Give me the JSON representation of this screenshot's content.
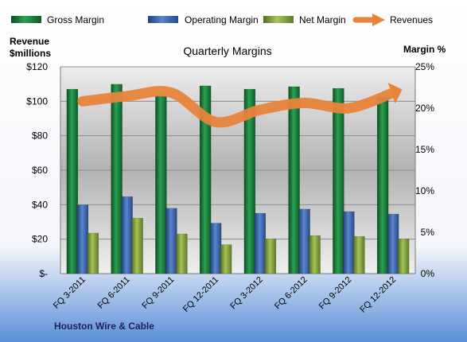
{
  "chart_data": {
    "type": "bar",
    "title": "Quarterly Margins",
    "categories": [
      "FQ 3-2011",
      "FQ 6-2011",
      "FQ 9-2011",
      "FQ 12-2011",
      "FQ 3-2012",
      "FQ 6-2012",
      "FQ 9-2012",
      "FQ 12-2012"
    ],
    "series": [
      {
        "name": "Gross Margin",
        "axis": "right",
        "values": [
          22.3,
          22.9,
          21.6,
          22.7,
          22.3,
          22.6,
          22.4,
          21.3
        ],
        "color": "#1e7a3a"
      },
      {
        "name": "Operating Margin",
        "axis": "right",
        "values": [
          8.3,
          9.3,
          7.9,
          6.1,
          7.3,
          7.8,
          7.5,
          7.2
        ],
        "color": "#3d6bb5"
      },
      {
        "name": "Net Margin",
        "axis": "right",
        "values": [
          4.9,
          6.7,
          4.8,
          3.5,
          4.2,
          4.6,
          4.5,
          4.2
        ],
        "color": "#8fb04a"
      },
      {
        "name": "Revenues",
        "type": "line",
        "axis": "left",
        "values": [
          100,
          103,
          105,
          88,
          95,
          99,
          96,
          105
        ],
        "color": "#e8843a"
      }
    ],
    "left_axis": {
      "label_lines": [
        "Revenue",
        "$millions"
      ],
      "ylim": [
        0,
        120
      ],
      "ticks": [
        0,
        20,
        40,
        60,
        80,
        100,
        120
      ],
      "tick_labels": [
        "$-",
        "$20",
        "$40",
        "$60",
        "$80",
        "$100",
        "$120"
      ]
    },
    "right_axis": {
      "label": "Margin %",
      "ylim": [
        0,
        25
      ],
      "ticks": [
        0,
        5,
        10,
        15,
        20,
        25
      ],
      "tick_labels": [
        "0%",
        "5%",
        "10%",
        "15%",
        "20%",
        "25%"
      ]
    },
    "grid": true,
    "legend_position": "top"
  },
  "footer": {
    "company": "Houston Wire & Cable"
  }
}
